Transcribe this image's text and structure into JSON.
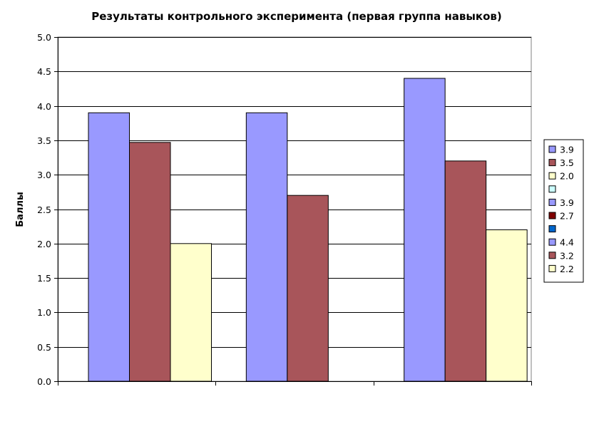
{
  "chart_data": {
    "type": "bar",
    "title": "Результаты контрольного эксперимента (первая группа навыков)",
    "ylabel": "Баллы",
    "xlabel": "",
    "ylim": [
      0,
      5
    ],
    "yticks": [
      "0.0",
      "0.5",
      "1.0",
      "1.5",
      "2.0",
      "2.5",
      "3.0",
      "3.5",
      "4.0",
      "4.5",
      "5.0"
    ],
    "ytick_values": [
      0,
      0.5,
      1,
      1.5,
      2,
      2.5,
      3,
      3.5,
      4,
      4.5,
      5
    ],
    "grid": true,
    "legend_position": "right",
    "groups": [
      {
        "bars": [
          {
            "value": 3.9,
            "color": "#9999ff"
          },
          {
            "value": 3.47,
            "color": "#a8555a"
          },
          {
            "value": 2.0,
            "color": "#ffffcc"
          }
        ]
      },
      {
        "bars": [
          {
            "value": 3.9,
            "color": "#9999ff"
          },
          {
            "value": 2.7,
            "color": "#a8555a"
          }
        ]
      },
      {
        "bars": [
          {
            "value": 4.4,
            "color": "#9999ff"
          },
          {
            "value": 3.2,
            "color": "#a8555a"
          },
          {
            "value": 2.2,
            "color": "#ffffcc"
          }
        ]
      }
    ],
    "legend": [
      {
        "label": "3.9",
        "color": "#9999ff"
      },
      {
        "label": "3.5",
        "color": "#a8555a"
      },
      {
        "label": "2.0",
        "color": "#ffffcc"
      },
      {
        "label": "",
        "color": "#ccffff"
      },
      {
        "label": "3.9",
        "color": "#9999ff"
      },
      {
        "label": "2.7",
        "color": "#800000"
      },
      {
        "label": "",
        "color": "#0066cc"
      },
      {
        "label": "4.4",
        "color": "#9999ff"
      },
      {
        "label": "3.2",
        "color": "#a8555a"
      },
      {
        "label": "2.2",
        "color": "#ffffcc"
      }
    ]
  }
}
